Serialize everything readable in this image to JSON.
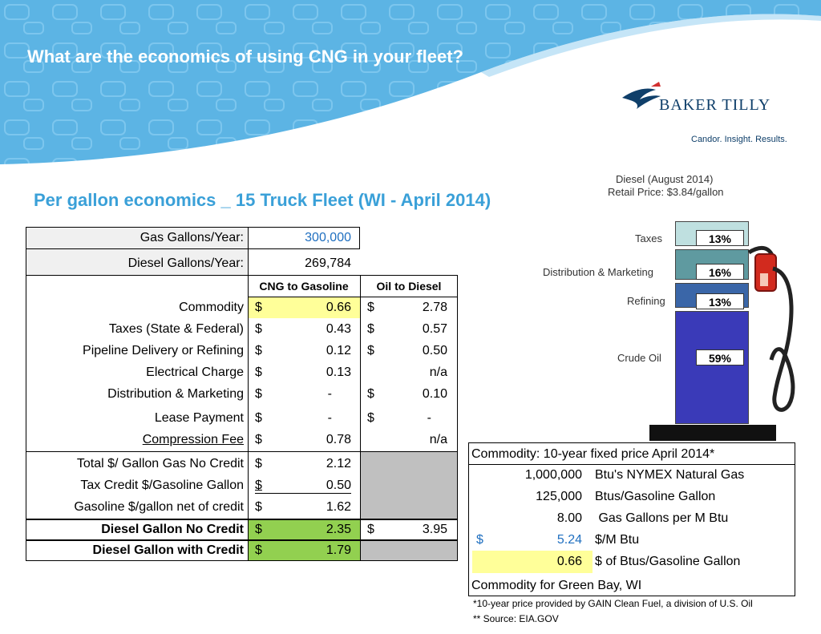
{
  "slide": {
    "title": "What are the economics of using CNG in your fleet?",
    "subtitle": "Per gallon economics _ 15 Truck Fleet (WI - April 2014)"
  },
  "logo": {
    "name": "BAKER TILLY",
    "tagline": "Candor. Insight. Results."
  },
  "fleet_table": {
    "gas_gallons_label": "Gas Gallons/Year:",
    "gas_gallons_value": "300,000",
    "diesel_gallons_label": "Diesel Gallons/Year:",
    "diesel_gallons_value": "269,784",
    "col_cng": "CNG to Gasoline",
    "col_oil": "Oil to Diesel",
    "rows": [
      {
        "label": "Commodity",
        "cng_sym": "$",
        "cng": "0.66",
        "oil_sym": "$",
        "oil": "2.78"
      },
      {
        "label": "Taxes (State & Federal)",
        "cng_sym": "$",
        "cng": "0.43",
        "oil_sym": "$",
        "oil": "0.57"
      },
      {
        "label": "Pipeline Delivery or Refining",
        "cng_sym": "$",
        "cng": "0.12",
        "oil_sym": "$",
        "oil": "0.50"
      },
      {
        "label": "Electrical Charge",
        "cng_sym": "$",
        "cng": "0.13",
        "oil_sym": "",
        "oil": "n/a"
      },
      {
        "label": "Distribution & Marketing",
        "cng_sym": "$",
        "cng": "-",
        "oil_sym": "$",
        "oil": "0.10"
      },
      {
        "label": "Lease Payment",
        "cng_sym": "$",
        "cng": "-",
        "oil_sym": "$",
        "oil": "-"
      },
      {
        "label": "Compression Fee",
        "cng_sym": "$",
        "cng": "0.78",
        "oil_sym": "",
        "oil": "n/a"
      }
    ],
    "totals": [
      {
        "label": "Total $/ Gallon Gas No Credit",
        "sym": "$",
        "value": "2.12"
      },
      {
        "label": "Tax Credit $/Gasoline Gallon",
        "sym": "$",
        "value": "0.50"
      },
      {
        "label": "Gasoline $/gallon net of credit",
        "sym": "$",
        "value": "1.62"
      }
    ],
    "diesel_no_credit": {
      "label": "Diesel Gallon No Credit",
      "sym": "$",
      "value": "2.35",
      "oil_sym": "$",
      "oil": "3.95"
    },
    "diesel_with_credit": {
      "label": "Diesel Gallon with Credit",
      "sym": "$",
      "value": "1.79"
    }
  },
  "diesel_graphic": {
    "title_line1": "Diesel (August 2014)",
    "title_line2": "Retail Price: $3.84/gallon",
    "segments": [
      {
        "label": "Taxes",
        "pct": "13%",
        "value": 13,
        "color": "#bfe0e0"
      },
      {
        "label": "Distribution & Marketing",
        "pct": "16%",
        "value": 16,
        "color": "#5f9aa0"
      },
      {
        "label": "Refining",
        "pct": "13%",
        "value": 13,
        "color": "#3a66a8"
      },
      {
        "label": "Crude Oil",
        "pct": "59%",
        "value": 59,
        "color": "#3a3ab8"
      }
    ]
  },
  "commodity_box": {
    "header": "Commodity: 10-year fixed price April 2014*",
    "rows": [
      {
        "sym": "",
        "value": "1,000,000",
        "label": "Btu's NYMEX Natural Gas"
      },
      {
        "sym": "",
        "value": "125,000",
        "label": "Btus/Gasoline Gallon"
      },
      {
        "sym": "",
        "value": "8.00",
        "label": " Gas Gallons per M Btu"
      },
      {
        "sym": "$",
        "value": "5.24",
        "label": "$/M Btu"
      },
      {
        "sym": "",
        "value": "0.66",
        "label": "$ of Btus/Gasoline Gallon"
      }
    ],
    "footer": "Commodity for Green Bay, WI"
  },
  "footnotes": {
    "note1": "*10-year price provided by GAIN Clean Fuel, a division of U.S. Oil",
    "note2": "** Source: EIA.GOV"
  },
  "colors": {
    "banner_blue": "#5cb4e4",
    "subtitle_blue": "#3aa0d8",
    "highlight_yellow": "#ffff99",
    "highlight_green": "#92d050",
    "gray_fill": "#c0c0c0",
    "value_blue": "#1f6fc0"
  }
}
